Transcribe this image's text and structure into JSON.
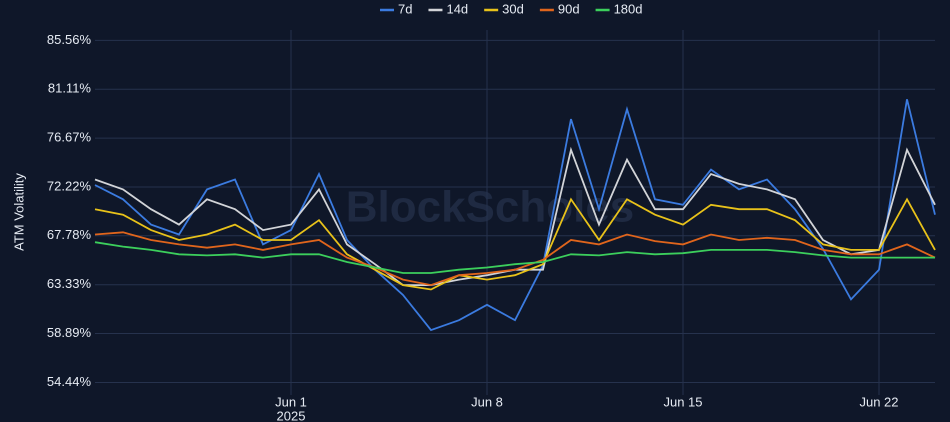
{
  "chart_data": {
    "type": "line",
    "y_label": "ATM Volatility",
    "watermark": "BlockScholes",
    "x": [
      "2025-05-25",
      "2025-05-26",
      "2025-05-27",
      "2025-05-28",
      "2025-05-29",
      "2025-05-30",
      "2025-05-31",
      "2025-06-01",
      "2025-06-02",
      "2025-06-03",
      "2025-06-04",
      "2025-06-05",
      "2025-06-06",
      "2025-06-07",
      "2025-06-08",
      "2025-06-09",
      "2025-06-10",
      "2025-06-11",
      "2025-06-12",
      "2025-06-13",
      "2025-06-14",
      "2025-06-15",
      "2025-06-16",
      "2025-06-17",
      "2025-06-18",
      "2025-06-19",
      "2025-06-20",
      "2025-06-21",
      "2025-06-22",
      "2025-06-23",
      "2025-06-24"
    ],
    "xlim": [
      "2025-05-25",
      "2025-06-24"
    ],
    "xticks": [
      {
        "value": "2025-06-01",
        "label": "Jun 1"
      },
      {
        "value": "2025-06-08",
        "label": "Jun 8"
      },
      {
        "value": "2025-06-15",
        "label": "Jun 15"
      },
      {
        "value": "2025-06-22",
        "label": "Jun 22"
      }
    ],
    "x_year_label": "2025",
    "ylim": [
      53.3,
      86.5
    ],
    "yticks": [
      {
        "value": 54.44,
        "label": "54.44%"
      },
      {
        "value": 58.89,
        "label": "58.89%"
      },
      {
        "value": 63.33,
        "label": "63.33%"
      },
      {
        "value": 67.78,
        "label": "67.78%"
      },
      {
        "value": 72.22,
        "label": "72.22%"
      },
      {
        "value": 76.67,
        "label": "76.67%"
      },
      {
        "value": 81.11,
        "label": "81.11%"
      },
      {
        "value": 85.56,
        "label": "85.56%"
      }
    ],
    "grid": true,
    "legend": "top",
    "series": [
      {
        "name": "7d",
        "color": "#3b7be0",
        "values": [
          72.4,
          71.1,
          68.8,
          67.9,
          72.0,
          72.9,
          67.0,
          68.3,
          73.4,
          67.4,
          64.7,
          62.4,
          59.2,
          60.1,
          61.5,
          60.1,
          65.1,
          78.4,
          70.2,
          79.3,
          71.1,
          70.6,
          73.8,
          72.0,
          72.9,
          70.2,
          66.6,
          62.0,
          64.7,
          80.2,
          69.7
        ]
      },
      {
        "name": "14d",
        "color": "#d2d4d8",
        "values": [
          72.9,
          72.0,
          70.2,
          68.8,
          71.1,
          70.2,
          68.3,
          68.8,
          72.0,
          67.0,
          65.2,
          63.3,
          63.3,
          63.8,
          64.2,
          64.7,
          64.7,
          75.6,
          68.8,
          74.7,
          70.2,
          70.2,
          73.4,
          72.5,
          72.0,
          71.1,
          67.4,
          66.1,
          66.5,
          75.6,
          70.6
        ]
      },
      {
        "name": "30d",
        "color": "#e8c21a",
        "values": [
          70.2,
          69.7,
          68.3,
          67.4,
          67.9,
          68.8,
          67.4,
          67.4,
          69.2,
          66.1,
          64.7,
          63.3,
          62.9,
          64.2,
          63.8,
          64.2,
          65.2,
          71.1,
          67.4,
          71.1,
          69.7,
          68.8,
          70.6,
          70.2,
          70.2,
          69.2,
          67.0,
          66.5,
          66.5,
          71.1,
          66.5
        ]
      },
      {
        "name": "90d",
        "color": "#e0651c",
        "values": [
          67.9,
          68.1,
          67.4,
          67.0,
          66.7,
          67.0,
          66.5,
          67.0,
          67.4,
          65.8,
          64.9,
          63.8,
          63.3,
          64.2,
          64.4,
          64.7,
          65.6,
          67.4,
          67.0,
          67.9,
          67.3,
          67.0,
          67.9,
          67.4,
          67.6,
          67.4,
          66.5,
          66.1,
          66.1,
          67.0,
          65.8
        ]
      },
      {
        "name": "180d",
        "color": "#3ccf5c",
        "values": [
          67.2,
          66.8,
          66.5,
          66.1,
          66.0,
          66.1,
          65.8,
          66.1,
          66.1,
          65.4,
          64.9,
          64.4,
          64.4,
          64.7,
          64.9,
          65.2,
          65.4,
          66.1,
          66.0,
          66.3,
          66.1,
          66.2,
          66.5,
          66.5,
          66.5,
          66.3,
          66.0,
          65.8,
          65.8,
          65.8,
          65.8
        ]
      }
    ]
  }
}
